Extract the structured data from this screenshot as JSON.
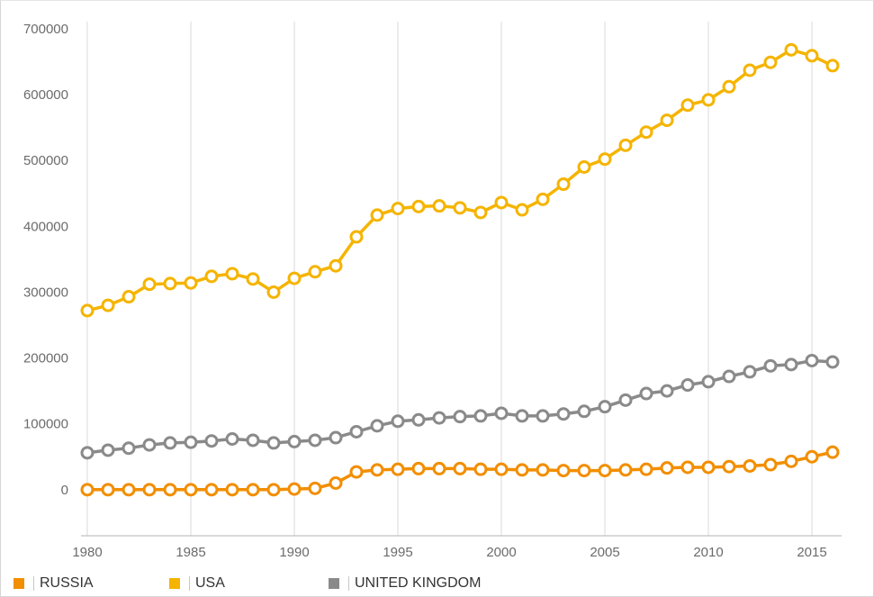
{
  "chart_data": {
    "type": "line",
    "title": "",
    "xlabel": "",
    "ylabel": "",
    "xlim": [
      1980,
      2016
    ],
    "ylim": [
      -70000,
      730000
    ],
    "x_ticks": [
      1980,
      1985,
      1990,
      1995,
      2000,
      2005,
      2010,
      2015
    ],
    "y_ticks": [
      0,
      100000,
      200000,
      300000,
      400000,
      500000,
      600000,
      700000
    ],
    "grid": "vertical",
    "legend_position": "bottom-left",
    "x": [
      1980,
      1981,
      1982,
      1983,
      1984,
      1985,
      1986,
      1987,
      1988,
      1989,
      1990,
      1991,
      1992,
      1993,
      1994,
      1995,
      1996,
      1997,
      1998,
      1999,
      2000,
      2001,
      2002,
      2003,
      2004,
      2005,
      2006,
      2007,
      2008,
      2009,
      2010,
      2011,
      2012,
      2013,
      2014,
      2015,
      2016
    ],
    "series": [
      {
        "name": "RUSSIA",
        "color": "#f28e00",
        "values": [
          0,
          0,
          0,
          0,
          0,
          0,
          0,
          0,
          0,
          0,
          1000,
          2000,
          10000,
          27000,
          30000,
          31000,
          32000,
          32000,
          32000,
          31000,
          31000,
          30000,
          30000,
          29000,
          29000,
          29000,
          30000,
          31000,
          33000,
          34000,
          34000,
          35000,
          36000,
          38000,
          43000,
          50000,
          57000
        ]
      },
      {
        "name": "USA",
        "color": "#f5b400",
        "values": [
          272000,
          280000,
          293000,
          312000,
          313000,
          314000,
          324000,
          328000,
          320000,
          300000,
          321000,
          331000,
          340000,
          384000,
          417000,
          427000,
          430000,
          431000,
          428000,
          421000,
          436000,
          425000,
          441000,
          464000,
          490000,
          502000,
          523000,
          543000,
          561000,
          584000,
          592000,
          612000,
          637000,
          649000,
          668000,
          659000,
          644000
        ]
      },
      {
        "name": "UNITED KINGDOM",
        "color": "#8a8a8a",
        "values": [
          56000,
          60000,
          63000,
          68000,
          71000,
          72000,
          74000,
          77000,
          75000,
          71000,
          73000,
          75000,
          79000,
          88000,
          97000,
          104000,
          106000,
          109000,
          111000,
          112000,
          116000,
          112000,
          112000,
          115000,
          119000,
          126000,
          136000,
          146000,
          150000,
          159000,
          164000,
          172000,
          179000,
          188000,
          190000,
          196000,
          194000
        ]
      }
    ]
  }
}
